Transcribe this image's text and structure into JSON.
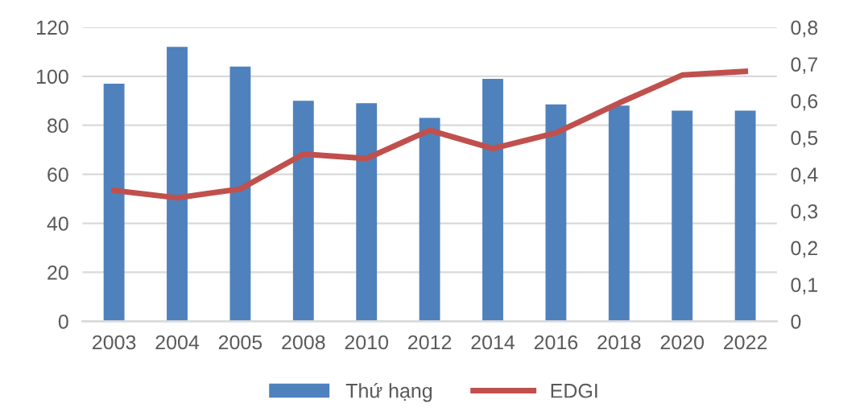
{
  "chart_data": {
    "type": "bar",
    "categories": [
      "2003",
      "2004",
      "2005",
      "2008",
      "2010",
      "2012",
      "2014",
      "2016",
      "2018",
      "2020",
      "2022"
    ],
    "series": [
      {
        "name": "Thứ hạng",
        "color": "#4f81bd",
        "values": [
          97,
          112,
          104,
          90,
          89,
          83,
          99,
          88.5,
          88,
          86,
          86
        ]
      },
      {
        "name": "EDGI",
        "type": "line",
        "axis": "y2",
        "color": "#c0504d",
        "values": [
          0.356,
          0.336,
          0.36,
          0.455,
          0.443,
          0.52,
          0.47,
          0.513,
          0.594,
          0.67,
          0.68
        ]
      }
    ],
    "ylim": [
      0,
      120
    ],
    "yticks": [
      0,
      20,
      40,
      60,
      80,
      100,
      120
    ],
    "y2lim": [
      0,
      0.8
    ],
    "y2ticks": [
      {
        "value": 0,
        "label": "0"
      },
      {
        "value": 0.1,
        "label": "0,1"
      },
      {
        "value": 0.2,
        "label": "0,2"
      },
      {
        "value": 0.3,
        "label": "0,3"
      },
      {
        "value": 0.4,
        "label": "0,4"
      },
      {
        "value": 0.5,
        "label": "0,5"
      },
      {
        "value": 0.6,
        "label": "0,6"
      },
      {
        "value": 0.7,
        "label": "0,7"
      },
      {
        "value": 0.8,
        "label": "0,8"
      }
    ],
    "grid": "y",
    "legend": "bottom",
    "marker": "none",
    "line_style": "solid"
  }
}
